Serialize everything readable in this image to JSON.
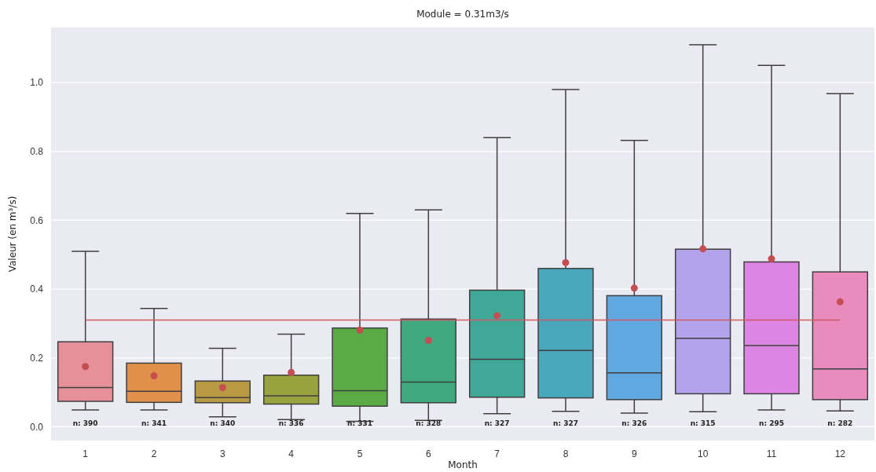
{
  "chart_data": {
    "type": "box",
    "title": "Module = 0.31m3/s",
    "xlabel": "Month",
    "ylabel": "Valeur (en m³/s)",
    "categories": [
      "1",
      "2",
      "3",
      "4",
      "5",
      "6",
      "7",
      "8",
      "9",
      "10",
      "11",
      "12"
    ],
    "colors": [
      "#e8909a",
      "#e0904a",
      "#b89a44",
      "#99a23e",
      "#5aaa45",
      "#3fa87e",
      "#40a897",
      "#4aa6bb",
      "#62a8e0",
      "#b3a3ec",
      "#dd85e3",
      "#e98bbd"
    ],
    "boxes": [
      {
        "low": 0.049,
        "q1": 0.074,
        "median": 0.114,
        "q3": 0.247,
        "high": 0.51,
        "mean": 0.175
      },
      {
        "low": 0.049,
        "q1": 0.071,
        "median": 0.103,
        "q3": 0.185,
        "high": 0.344,
        "mean": 0.148
      },
      {
        "low": 0.029,
        "q1": 0.07,
        "median": 0.085,
        "q3": 0.133,
        "high": 0.228,
        "mean": 0.114
      },
      {
        "low": 0.021,
        "q1": 0.066,
        "median": 0.09,
        "q3": 0.15,
        "high": 0.269,
        "mean": 0.158
      },
      {
        "low": 0.016,
        "q1": 0.06,
        "median": 0.105,
        "q3": 0.287,
        "high": 0.62,
        "mean": 0.281
      },
      {
        "low": 0.019,
        "q1": 0.07,
        "median": 0.13,
        "q3": 0.313,
        "high": 0.63,
        "mean": 0.251
      },
      {
        "low": 0.038,
        "q1": 0.086,
        "median": 0.196,
        "q3": 0.397,
        "high": 0.84,
        "mean": 0.323
      },
      {
        "low": 0.045,
        "q1": 0.084,
        "median": 0.222,
        "q3": 0.46,
        "high": 0.98,
        "mean": 0.477
      },
      {
        "low": 0.04,
        "q1": 0.079,
        "median": 0.157,
        "q3": 0.381,
        "high": 0.832,
        "mean": 0.403
      },
      {
        "low": 0.044,
        "q1": 0.096,
        "median": 0.257,
        "q3": 0.516,
        "high": 1.11,
        "mean": 0.517
      },
      {
        "low": 0.049,
        "q1": 0.096,
        "median": 0.236,
        "q3": 0.479,
        "high": 1.05,
        "mean": 0.488
      },
      {
        "low": 0.046,
        "q1": 0.079,
        "median": 0.168,
        "q3": 0.45,
        "high": 0.968,
        "mean": 0.363
      }
    ],
    "ylim": [
      -0.04,
      1.16
    ],
    "yticks": [
      {
        "value": 0,
        "label": "0.0"
      },
      {
        "value": 0.2,
        "label": "0.2"
      },
      {
        "value": 0.4,
        "label": "0.4"
      },
      {
        "value": 0.6,
        "label": "0.6"
      },
      {
        "value": 0.8,
        "label": "0.8"
      },
      {
        "value": 1,
        "label": "1.0"
      }
    ],
    "grid": "y",
    "ref_lines": [
      {
        "axis": "y",
        "value": 0.31,
        "color": "#d05a5f"
      }
    ],
    "annotations": [
      "n: 390",
      "n: 341",
      "n: 340",
      "n: 336",
      "n: 331",
      "n: 328",
      "n: 327",
      "n: 327",
      "n: 326",
      "n: 315",
      "n: 295",
      "n: 282"
    ]
  }
}
